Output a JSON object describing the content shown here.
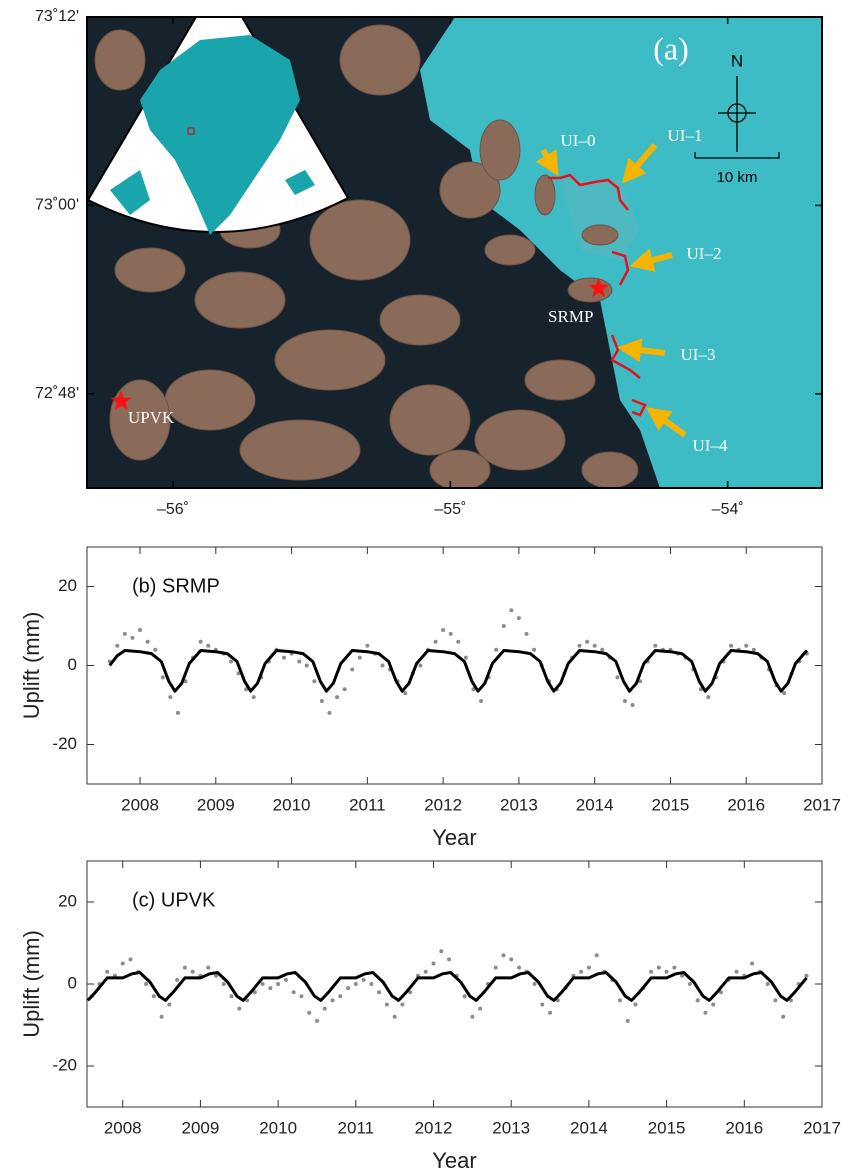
{
  "map": {
    "label": "(a)",
    "north": "N",
    "scale": "10 km",
    "xlim": [
      -56.31,
      -53.66
    ],
    "ylim": [
      72.7,
      73.2
    ],
    "xticks": [
      {
        "value": -56,
        "label": "–56˚"
      },
      {
        "value": -55,
        "label": "–55˚"
      },
      {
        "value": -54,
        "label": "–54˚"
      }
    ],
    "yticks": [
      {
        "value": 73.2,
        "label": "73˚12'"
      },
      {
        "value": 73.0,
        "label": "73˚00'"
      },
      {
        "value": 72.8,
        "label": "72˚48'"
      }
    ],
    "stations": [
      {
        "name": "SRMP",
        "lon": -54.465,
        "lat": 72.912
      },
      {
        "name": "UPVK",
        "lon": -56.187,
        "lat": 72.792
      }
    ],
    "outlets": [
      "UI–0",
      "UI–1",
      "UI–2",
      "UI–3",
      "UI–4"
    ]
  },
  "chart_data": [
    {
      "type": "scatter",
      "annotation": "(b) SRMP",
      "xlabel": "Year",
      "ylabel": "Uplift (mm)",
      "xlim": [
        2007.3,
        2017
      ],
      "ylim": [
        -30,
        30
      ],
      "xticks": [
        2008,
        2009,
        2010,
        2011,
        2012,
        2013,
        2014,
        2015,
        2016,
        2017
      ],
      "yticks": [
        -20,
        0,
        20
      ],
      "series": [
        {
          "type": "scatter",
          "color": "#8c8c8c",
          "x": [
            2007.6,
            2007.7,
            2007.8,
            2007.9,
            2008.0,
            2008.1,
            2008.2,
            2008.3,
            2008.4,
            2008.5,
            2008.6,
            2008.7,
            2008.8,
            2008.9,
            2009.0,
            2009.1,
            2009.2,
            2009.3,
            2009.4,
            2009.5,
            2009.6,
            2009.7,
            2009.8,
            2009.9,
            2010.0,
            2010.1,
            2010.2,
            2010.3,
            2010.4,
            2010.5,
            2010.6,
            2010.7,
            2010.8,
            2010.9,
            2011.0,
            2011.1,
            2011.2,
            2011.3,
            2011.4,
            2011.5,
            2011.6,
            2011.7,
            2011.8,
            2011.9,
            2012.0,
            2012.1,
            2012.2,
            2012.3,
            2012.4,
            2012.5,
            2012.6,
            2012.7,
            2012.8,
            2012.9,
            2013.0,
            2013.1,
            2013.2,
            2013.3,
            2013.4,
            2013.5,
            2013.6,
            2013.7,
            2013.8,
            2013.9,
            2014.0,
            2014.1,
            2014.2,
            2014.3,
            2014.4,
            2014.5,
            2014.6,
            2014.7,
            2014.8,
            2014.9,
            2015.0,
            2015.1,
            2015.2,
            2015.3,
            2015.4,
            2015.5,
            2015.6,
            2015.7,
            2015.8,
            2015.9,
            2016.0,
            2016.1,
            2016.2,
            2016.3,
            2016.4,
            2016.5,
            2016.6,
            2016.7,
            2016.8
          ],
          "values": [
            1,
            5,
            8,
            7,
            9,
            6,
            4,
            -3,
            -8,
            -12,
            -4,
            2,
            6,
            5,
            4,
            3,
            1,
            -2,
            -6,
            -8,
            -3,
            1,
            4,
            2,
            3,
            1,
            0,
            -4,
            -9,
            -12,
            -8,
            -6,
            -1,
            2,
            5,
            3,
            0,
            -1,
            -4,
            -7,
            -2,
            0,
            4,
            6,
            9,
            8,
            6,
            2,
            -6,
            -9,
            -3,
            4,
            10,
            14,
            12,
            8,
            4,
            0,
            -4,
            -6,
            -2,
            2,
            5,
            6,
            5,
            4,
            2,
            -3,
            -9,
            -10,
            -4,
            1,
            5,
            4,
            4,
            3,
            2,
            -1,
            -6,
            -8,
            -3,
            1,
            5,
            4,
            5,
            4,
            2,
            -1,
            -5,
            -7,
            -2,
            1,
            3
          ]
        },
        {
          "type": "line",
          "color": "#000000",
          "x": [
            2007.6,
            2007.7,
            2007.8,
            2008,
            2008.15,
            2008.28,
            2008.38,
            2008.46,
            2008.55,
            2008.65,
            2008.8,
            2009,
            2009.15,
            2009.28,
            2009.38,
            2009.46,
            2009.55,
            2009.65,
            2009.8,
            2010,
            2010.15,
            2010.28,
            2010.38,
            2010.46,
            2010.55,
            2010.65,
            2010.8,
            2011,
            2011.15,
            2011.28,
            2011.38,
            2011.46,
            2011.55,
            2011.65,
            2011.8,
            2012,
            2012.15,
            2012.28,
            2012.38,
            2012.46,
            2012.55,
            2012.65,
            2012.8,
            2013,
            2013.15,
            2013.28,
            2013.38,
            2013.46,
            2013.55,
            2013.65,
            2013.8,
            2014,
            2014.15,
            2014.28,
            2014.38,
            2014.46,
            2014.55,
            2014.65,
            2014.8,
            2015,
            2015.15,
            2015.28,
            2015.38,
            2015.46,
            2015.55,
            2015.65,
            2015.8,
            2016,
            2016.15,
            2016.28,
            2016.38,
            2016.46,
            2016.55,
            2016.65,
            2016.8
          ],
          "values": [
            0,
            2.5,
            3.8,
            3.5,
            3,
            1,
            -4,
            -6.5,
            -4.5,
            0.5,
            3.8,
            3.5,
            3,
            1,
            -4,
            -6.5,
            -4.5,
            0.5,
            3.8,
            3.5,
            3,
            1,
            -4,
            -6.5,
            -4.5,
            0.5,
            3.8,
            3.5,
            3,
            1,
            -4,
            -6.5,
            -4.5,
            0.5,
            3.8,
            3.5,
            3,
            1,
            -4,
            -6.5,
            -4.5,
            0.5,
            3.8,
            3.5,
            3,
            1,
            -4,
            -6.5,
            -4.5,
            0.5,
            3.8,
            3.5,
            3,
            1,
            -4,
            -6.5,
            -4.5,
            0.5,
            3.8,
            3.5,
            3,
            1,
            -4,
            -6.5,
            -4.5,
            0.5,
            3.8,
            3.5,
            3,
            1,
            -4,
            -6.5,
            -4.5,
            0.5,
            3.8
          ]
        }
      ]
    },
    {
      "type": "scatter",
      "annotation": "(c) UPVK",
      "xlabel": "Year",
      "ylabel": "Uplift (mm)",
      "xlim": [
        2007.54,
        2017
      ],
      "ylim": [
        -30,
        30
      ],
      "xticks": [
        2008,
        2009,
        2010,
        2011,
        2012,
        2013,
        2014,
        2015,
        2016,
        2017
      ],
      "yticks": [
        -20,
        0,
        20
      ],
      "series": [
        {
          "type": "scatter",
          "color": "#8c8c8c",
          "x": [
            2007.6,
            2007.7,
            2007.8,
            2007.9,
            2008.0,
            2008.1,
            2008.2,
            2008.3,
            2008.4,
            2008.5,
            2008.6,
            2008.7,
            2008.8,
            2008.9,
            2009.0,
            2009.1,
            2009.2,
            2009.3,
            2009.4,
            2009.5,
            2009.6,
            2009.7,
            2009.8,
            2009.9,
            2010.0,
            2010.1,
            2010.2,
            2010.3,
            2010.4,
            2010.5,
            2010.6,
            2010.7,
            2010.8,
            2010.9,
            2011.0,
            2011.1,
            2011.2,
            2011.3,
            2011.4,
            2011.5,
            2011.6,
            2011.7,
            2011.8,
            2011.9,
            2012.0,
            2012.1,
            2012.2,
            2012.3,
            2012.4,
            2012.5,
            2012.6,
            2012.7,
            2012.8,
            2012.9,
            2013.0,
            2013.1,
            2013.2,
            2013.3,
            2013.4,
            2013.5,
            2013.6,
            2013.7,
            2013.8,
            2013.9,
            2014.0,
            2014.1,
            2014.2,
            2014.3,
            2014.4,
            2014.5,
            2014.6,
            2014.7,
            2014.8,
            2014.9,
            2015.0,
            2015.1,
            2015.2,
            2015.3,
            2015.4,
            2015.5,
            2015.6,
            2015.7,
            2015.8,
            2015.9,
            2016.0,
            2016.1,
            2016.2,
            2016.3,
            2016.4,
            2016.5,
            2016.6,
            2016.7,
            2016.8
          ],
          "values": [
            -3,
            0,
            3,
            2,
            5,
            6,
            3,
            0,
            -3,
            -8,
            -5,
            1,
            4,
            3,
            2,
            4,
            2,
            0,
            -3,
            -6,
            -4,
            -2,
            0,
            -1,
            0,
            1,
            -2,
            -3,
            -7,
            -9,
            -6,
            -4,
            -3,
            -1,
            0,
            1,
            0,
            -2,
            -5,
            -8,
            -5,
            -2,
            2,
            3,
            5,
            8,
            6,
            2,
            -3,
            -8,
            -6,
            0,
            4,
            7,
            6,
            4,
            3,
            0,
            -5,
            -7,
            -4,
            -1,
            2,
            3,
            4,
            7,
            3,
            1,
            -4,
            -9,
            -5,
            -1,
            3,
            4,
            3,
            4,
            2,
            0,
            -4,
            -7,
            -5,
            -2,
            1,
            3,
            2,
            5,
            3,
            0,
            -4,
            -8,
            -4,
            0,
            2
          ]
        },
        {
          "type": "line",
          "color": "#000000",
          "x": [
            2007.55,
            2007.65,
            2007.8,
            2008,
            2008.12,
            2008.22,
            2008.35,
            2008.47,
            2008.55,
            2008.65,
            2008.8,
            2009,
            2009.12,
            2009.22,
            2009.35,
            2009.47,
            2009.55,
            2009.65,
            2009.8,
            2010,
            2010.12,
            2010.22,
            2010.35,
            2010.47,
            2010.55,
            2010.65,
            2010.8,
            2011,
            2011.12,
            2011.22,
            2011.35,
            2011.47,
            2011.55,
            2011.65,
            2011.8,
            2012,
            2012.12,
            2012.22,
            2012.35,
            2012.47,
            2012.55,
            2012.65,
            2012.8,
            2013,
            2013.12,
            2013.22,
            2013.35,
            2013.47,
            2013.55,
            2013.65,
            2013.8,
            2014,
            2014.12,
            2014.22,
            2014.35,
            2014.47,
            2014.55,
            2014.65,
            2014.8,
            2015,
            2015.12,
            2015.22,
            2015.35,
            2015.47,
            2015.55,
            2015.65,
            2015.8,
            2016,
            2016.12,
            2016.22,
            2016.35,
            2016.47,
            2016.55,
            2016.65,
            2016.8
          ],
          "values": [
            -4,
            -2,
            1.5,
            1.5,
            2.5,
            2.8,
            0.5,
            -3,
            -4,
            -2,
            1.5,
            1.5,
            2.5,
            2.8,
            0.5,
            -3,
            -4,
            -2,
            1.5,
            1.5,
            2.5,
            2.8,
            0.5,
            -3,
            -4,
            -2,
            1.5,
            1.5,
            2.5,
            2.8,
            0.5,
            -3,
            -4,
            -2,
            1.5,
            1.5,
            2.5,
            2.8,
            0.5,
            -3,
            -4,
            -2,
            1.5,
            1.5,
            2.5,
            2.8,
            0.5,
            -3,
            -4,
            -2,
            1.5,
            1.5,
            2.5,
            2.8,
            0.5,
            -3,
            -4,
            -2,
            1.5,
            1.5,
            2.5,
            2.8,
            0.5,
            -3,
            -4,
            -2,
            1.5,
            1.5,
            2.5,
            2.8,
            0.5,
            -3,
            -4,
            -2,
            1.5
          ]
        }
      ]
    }
  ]
}
